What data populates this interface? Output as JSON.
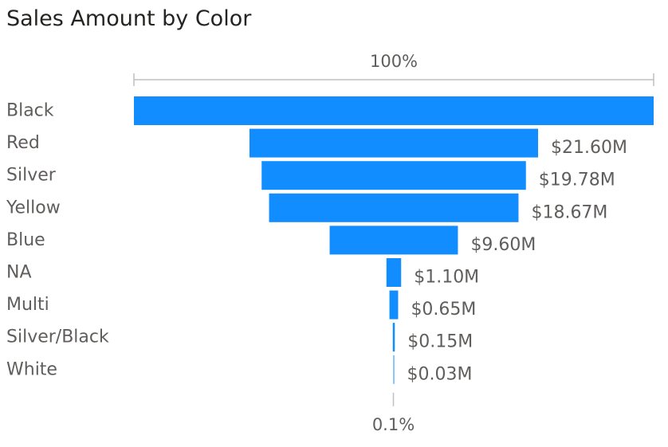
{
  "chart_data": {
    "type": "funnel",
    "title": "Sales Amount by Color",
    "categories": [
      "Black",
      "Red",
      "Silver",
      "Yellow",
      "Blue",
      "NA",
      "Multi",
      "Silver/Black",
      "White"
    ],
    "values": [
      38.9,
      21.6,
      19.78,
      18.67,
      9.6,
      1.1,
      0.65,
      0.15,
      0.03
    ],
    "value_labels": [
      "",
      "$21.60M",
      "$19.78M",
      "$18.67M",
      "$9.60M",
      "$1.10M",
      "$0.65M",
      "$0.15M",
      "$0.03M"
    ],
    "top_percent_label": "100%",
    "bottom_percent_label": "0.1%",
    "bar_color": "#118DFF",
    "label_color": "#605E5C",
    "axis_color": "#BFBFBF"
  }
}
